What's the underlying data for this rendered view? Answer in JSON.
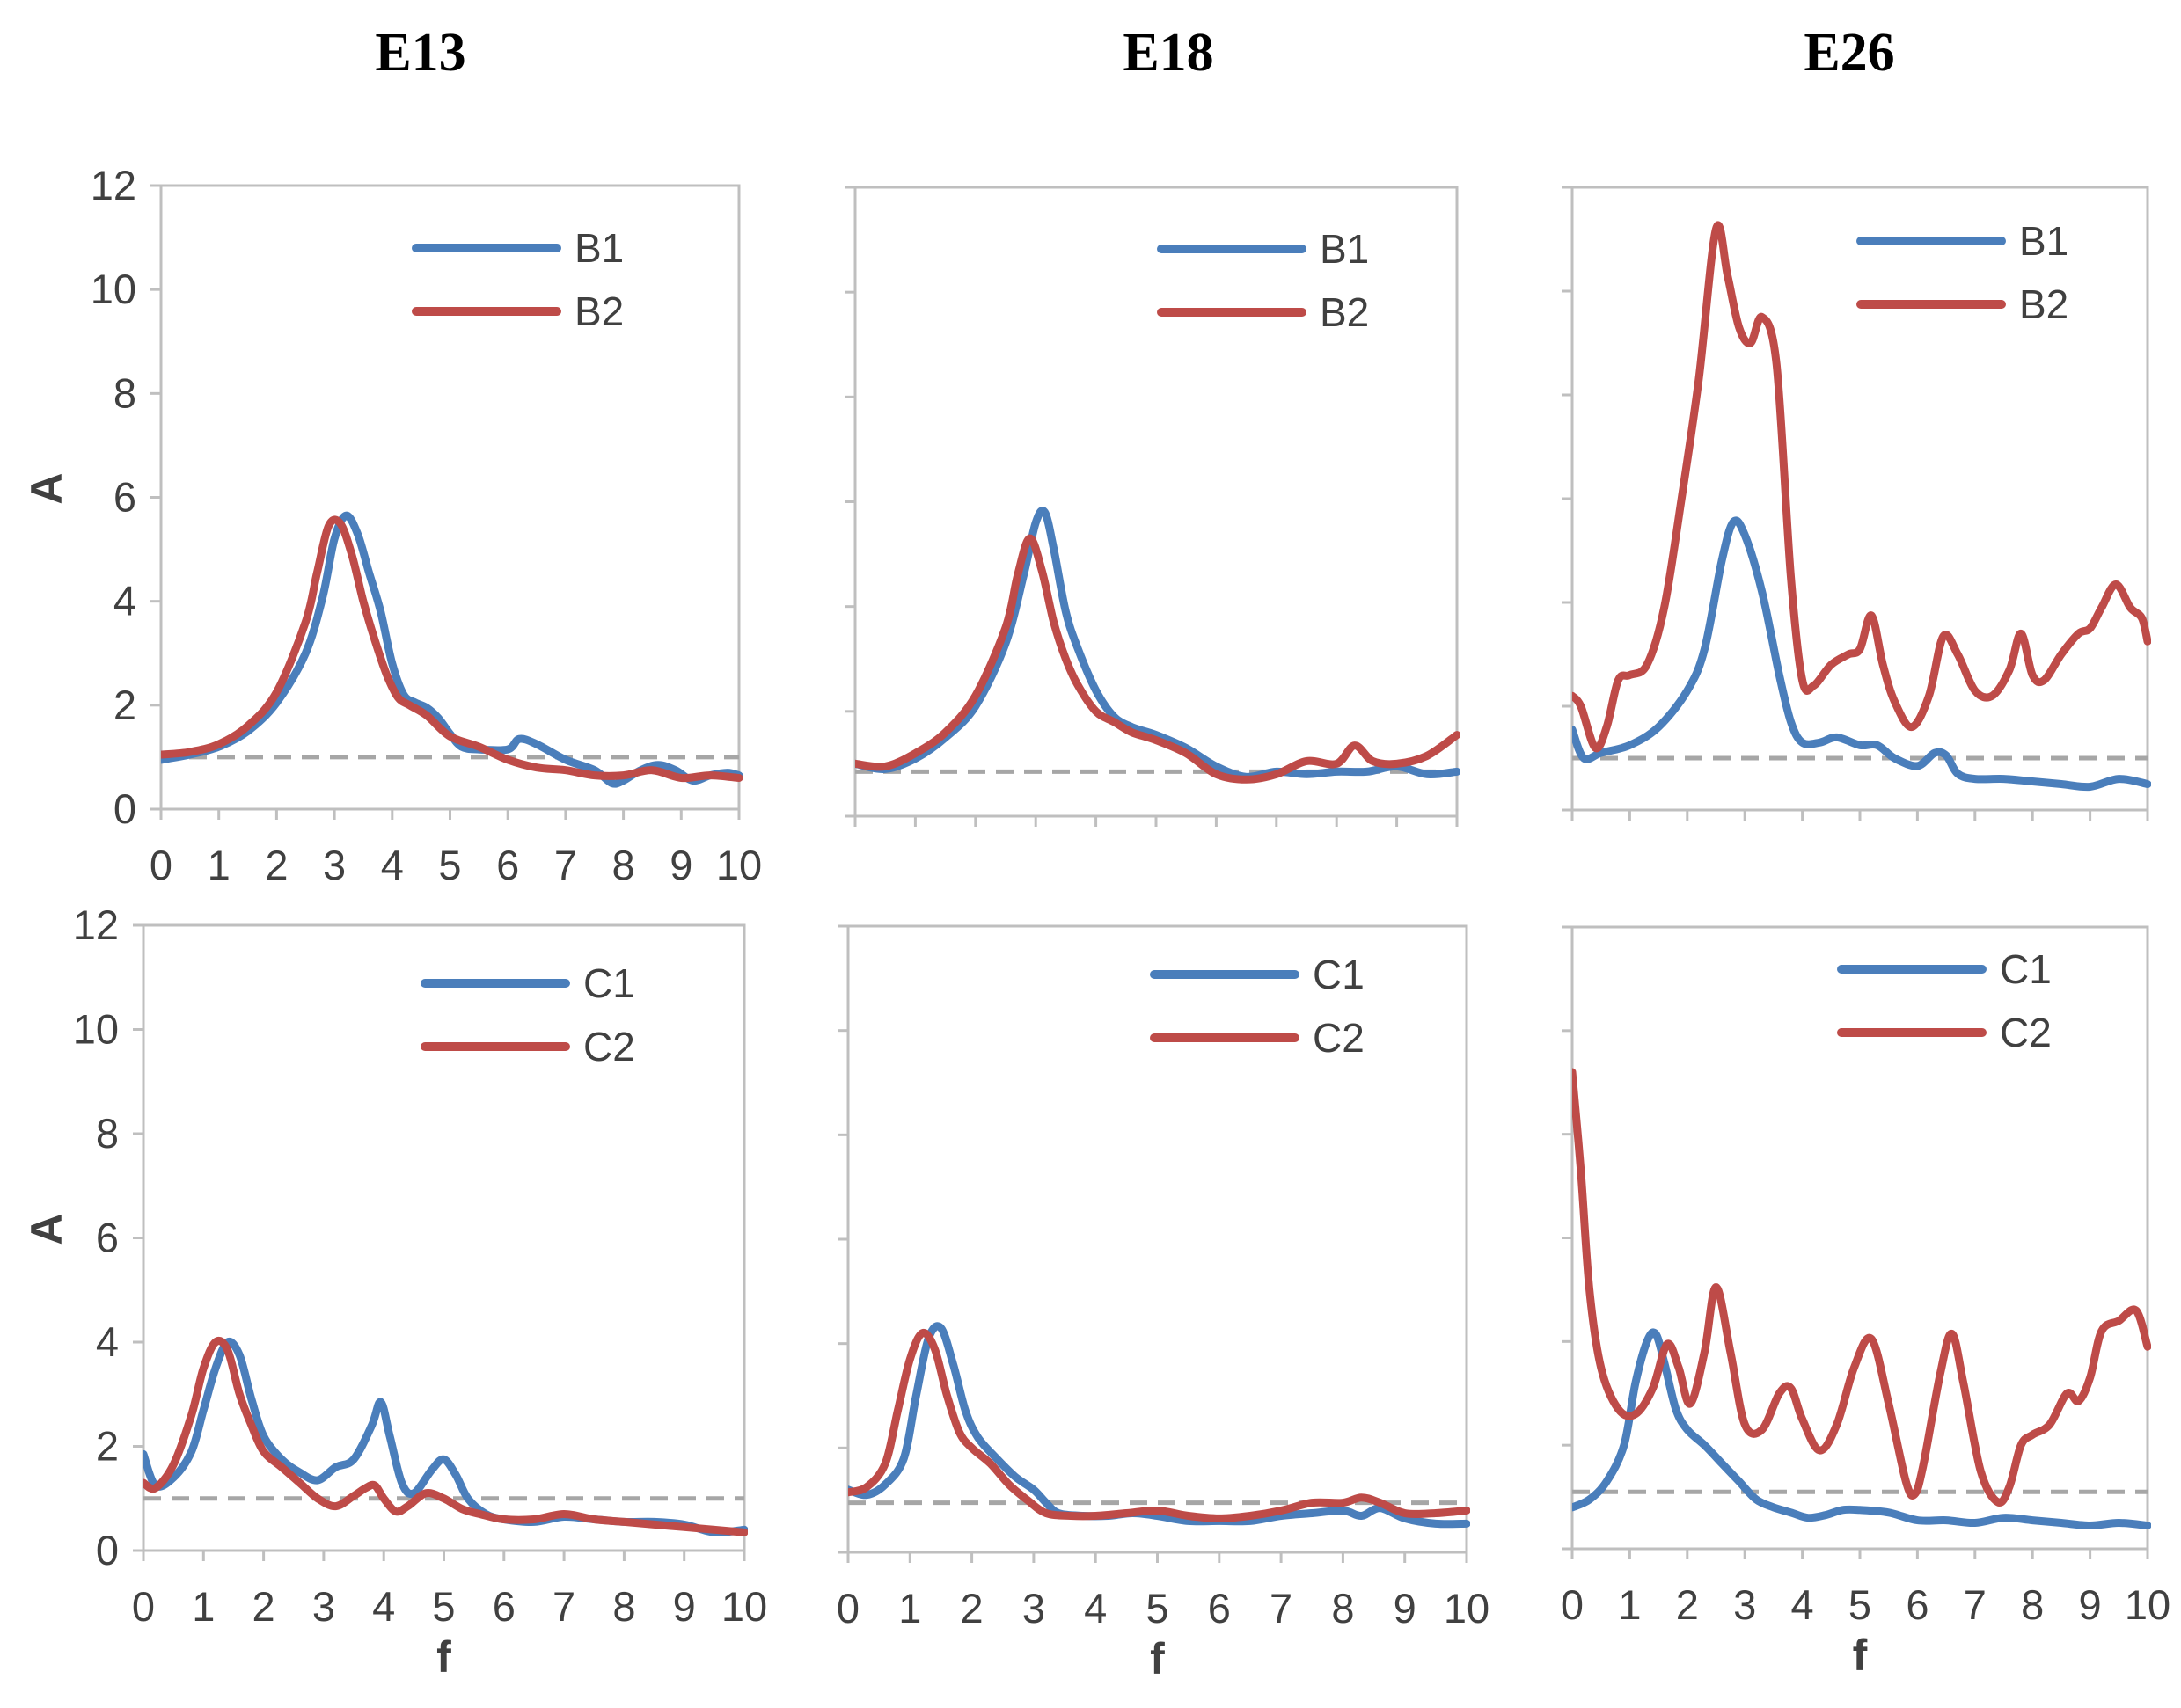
{
  "colors": {
    "series_blue": "#4a7ebb",
    "series_red": "#be4b48",
    "reference": "#a6a6a6",
    "frame": "#bfbfbf"
  },
  "chart_data": [
    {
      "type": "line",
      "column_title": "E13",
      "row": "top",
      "xlabel": "",
      "ylabel": "A",
      "xlim": [
        0,
        10
      ],
      "ylim": [
        0,
        12
      ],
      "reference_line": 1.0,
      "xticks": [
        "0",
        "1",
        "2",
        "3",
        "4",
        "5",
        "6",
        "7",
        "8",
        "9",
        "10"
      ],
      "yticks": [
        "0",
        "2",
        "4",
        "6",
        "8",
        "10",
        "12"
      ],
      "legend_position": "top-right",
      "series": [
        {
          "name": "B1",
          "color": "#4a7ebb",
          "x": [
            0,
            0.5,
            1,
            1.5,
            2,
            2.5,
            2.8,
            3,
            3.2,
            3.4,
            3.6,
            3.8,
            4,
            4.2,
            4.4,
            4.6,
            4.8,
            5,
            5.2,
            5.5,
            6,
            6.2,
            6.5,
            7,
            7.5,
            7.8,
            8,
            8.3,
            8.6,
            8.9,
            9.2,
            9.5,
            9.8,
            10
          ],
          "y": [
            0.95,
            1.05,
            1.2,
            1.5,
            2.05,
            3.0,
            4.1,
            5.2,
            5.65,
            5.3,
            4.55,
            3.8,
            2.8,
            2.2,
            2.05,
            1.95,
            1.75,
            1.45,
            1.2,
            1.15,
            1.15,
            1.35,
            1.25,
            0.95,
            0.75,
            0.5,
            0.55,
            0.75,
            0.85,
            0.75,
            0.55,
            0.65,
            0.7,
            0.65
          ]
        },
        {
          "name": "B2",
          "color": "#be4b48",
          "x": [
            0,
            0.5,
            1,
            1.5,
            2,
            2.5,
            2.7,
            2.9,
            3.1,
            3.3,
            3.5,
            3.7,
            3.9,
            4.1,
            4.3,
            4.6,
            5,
            5.5,
            6,
            6.5,
            7,
            7.5,
            8,
            8.5,
            9,
            9.5,
            10
          ],
          "y": [
            1.05,
            1.1,
            1.25,
            1.6,
            2.25,
            3.6,
            4.55,
            5.45,
            5.5,
            4.9,
            4.0,
            3.25,
            2.6,
            2.15,
            2.0,
            1.8,
            1.4,
            1.2,
            0.95,
            0.8,
            0.75,
            0.65,
            0.65,
            0.75,
            0.6,
            0.65,
            0.6
          ]
        }
      ]
    },
    {
      "type": "line",
      "column_title": "E18",
      "row": "top",
      "xlabel": "",
      "ylabel": "",
      "xlim": [
        0,
        10
      ],
      "ylim": [
        0,
        12
      ],
      "reference_line": 0.85,
      "legend_position": "top-right",
      "series": [
        {
          "name": "B1",
          "color": "#4a7ebb",
          "x": [
            0,
            0.5,
            1,
            1.5,
            2,
            2.5,
            2.8,
            3,
            3.15,
            3.3,
            3.5,
            3.7,
            4,
            4.3,
            4.6,
            5,
            5.5,
            6,
            6.5,
            7,
            7.5,
            8,
            8.5,
            9,
            9.5,
            10
          ],
          "y": [
            1.0,
            0.9,
            1.1,
            1.5,
            2.1,
            3.3,
            4.6,
            5.6,
            5.8,
            5.1,
            3.9,
            3.2,
            2.4,
            1.9,
            1.7,
            1.55,
            1.3,
            0.95,
            0.75,
            0.85,
            0.8,
            0.85,
            0.85,
            0.95,
            0.8,
            0.85
          ]
        },
        {
          "name": "B2",
          "color": "#be4b48",
          "x": [
            0,
            0.5,
            1,
            1.5,
            2,
            2.5,
            2.7,
            2.9,
            3.1,
            3.3,
            3.5,
            3.7,
            4,
            4.3,
            4.6,
            5,
            5.5,
            6,
            6.5,
            7,
            7.5,
            8,
            8.3,
            8.6,
            9,
            9.5,
            10
          ],
          "y": [
            1.0,
            0.95,
            1.2,
            1.6,
            2.3,
            3.6,
            4.6,
            5.3,
            4.7,
            3.7,
            3.0,
            2.5,
            2.0,
            1.8,
            1.6,
            1.45,
            1.2,
            0.8,
            0.7,
            0.8,
            1.05,
            1.0,
            1.35,
            1.05,
            1.0,
            1.15,
            1.55
          ]
        }
      ]
    },
    {
      "type": "line",
      "column_title": "E26",
      "row": "top",
      "xlabel": "",
      "ylabel": "",
      "xlim": [
        0,
        10
      ],
      "ylim": [
        0,
        12
      ],
      "reference_line": 1.0,
      "legend_position": "top-right",
      "series": [
        {
          "name": "B1",
          "color": "#4a7ebb",
          "x": [
            0,
            0.2,
            0.5,
            1,
            1.5,
            2,
            2.3,
            2.6,
            2.8,
            3,
            3.3,
            3.6,
            3.8,
            4,
            4.3,
            4.6,
            5,
            5.3,
            5.6,
            6,
            6.3,
            6.5,
            6.7,
            7,
            7.5,
            8,
            8.5,
            9,
            9.5,
            10
          ],
          "y": [
            1.55,
            1.0,
            1.1,
            1.25,
            1.6,
            2.3,
            3.1,
            4.8,
            5.55,
            5.3,
            4.2,
            2.6,
            1.7,
            1.3,
            1.3,
            1.4,
            1.25,
            1.25,
            1.0,
            0.85,
            1.1,
            1.05,
            0.7,
            0.6,
            0.6,
            0.55,
            0.5,
            0.45,
            0.6,
            0.5
          ]
        },
        {
          "name": "B2",
          "color": "#be4b48",
          "x": [
            0,
            0.15,
            0.4,
            0.6,
            0.8,
            1,
            1.3,
            1.6,
            1.9,
            2.2,
            2.5,
            2.7,
            2.9,
            3.1,
            3.3,
            3.55,
            3.8,
            4,
            4.2,
            4.5,
            4.8,
            5,
            5.2,
            5.4,
            5.6,
            5.9,
            6.2,
            6.45,
            6.7,
            7,
            7.3,
            7.6,
            7.8,
            8,
            8.2,
            8.5,
            8.8,
            9,
            9.2,
            9.45,
            9.7,
            9.9,
            10
          ],
          "y": [
            2.2,
            2.0,
            1.2,
            1.6,
            2.5,
            2.6,
            2.8,
            3.9,
            6.0,
            8.3,
            11.2,
            10.3,
            9.3,
            9.0,
            9.5,
            8.6,
            4.5,
            2.5,
            2.4,
            2.8,
            3.0,
            3.1,
            3.75,
            2.8,
            2.1,
            1.6,
            2.2,
            3.35,
            3.0,
            2.3,
            2.2,
            2.7,
            3.4,
            2.6,
            2.5,
            3.0,
            3.4,
            3.5,
            3.9,
            4.35,
            3.9,
            3.7,
            3.25
          ]
        }
      ]
    },
    {
      "type": "line",
      "column_title": "E13",
      "row": "bottom",
      "xlabel": "f",
      "ylabel": "A",
      "xlim": [
        0,
        10
      ],
      "ylim": [
        0,
        12
      ],
      "reference_line": 1.0,
      "xticks": [
        "0",
        "1",
        "2",
        "3",
        "4",
        "5",
        "6",
        "7",
        "8",
        "9",
        "10"
      ],
      "yticks": [
        "0",
        "2",
        "4",
        "6",
        "8",
        "10",
        "12"
      ],
      "legend_position": "top-right",
      "series": [
        {
          "name": "C1",
          "color": "#4a7ebb",
          "x": [
            0,
            0.2,
            0.5,
            0.8,
            1,
            1.2,
            1.4,
            1.6,
            1.8,
            2,
            2.3,
            2.6,
            2.9,
            3.2,
            3.5,
            3.8,
            3.95,
            4.1,
            4.3,
            4.5,
            4.8,
            5,
            5.2,
            5.4,
            5.7,
            6,
            6.5,
            7,
            7.5,
            8,
            8.5,
            9,
            9.5,
            10
          ],
          "y": [
            1.85,
            1.25,
            1.4,
            1.9,
            2.7,
            3.5,
            4.0,
            3.75,
            2.9,
            2.2,
            1.75,
            1.5,
            1.35,
            1.6,
            1.75,
            2.4,
            2.85,
            2.2,
            1.3,
            1.1,
            1.55,
            1.75,
            1.45,
            1.0,
            0.7,
            0.6,
            0.55,
            0.65,
            0.6,
            0.55,
            0.55,
            0.5,
            0.35,
            0.4
          ]
        },
        {
          "name": "C2",
          "color": "#be4b48",
          "x": [
            0,
            0.2,
            0.5,
            0.8,
            1,
            1.2,
            1.4,
            1.6,
            1.8,
            2,
            2.3,
            2.6,
            2.9,
            3.2,
            3.5,
            3.7,
            3.85,
            4,
            4.2,
            4.4,
            4.7,
            5,
            5.3,
            5.6,
            6,
            6.5,
            7,
            7.5,
            8,
            8.5,
            9,
            9.5,
            10
          ],
          "y": [
            1.3,
            1.2,
            1.65,
            2.6,
            3.5,
            4.0,
            3.85,
            3.0,
            2.4,
            1.9,
            1.6,
            1.3,
            1.0,
            0.85,
            1.05,
            1.2,
            1.25,
            1.0,
            0.75,
            0.85,
            1.1,
            1.0,
            0.8,
            0.7,
            0.6,
            0.6,
            0.7,
            0.6,
            0.55,
            0.5,
            0.45,
            0.4,
            0.35
          ]
        }
      ]
    },
    {
      "type": "line",
      "column_title": "E18",
      "row": "bottom",
      "xlabel": "f",
      "ylabel": "",
      "xlim": [
        0,
        10
      ],
      "ylim": [
        0,
        12
      ],
      "reference_line": 0.95,
      "xticks": [
        "0",
        "1",
        "2",
        "3",
        "4",
        "5",
        "6",
        "7",
        "8",
        "9",
        "10"
      ],
      "legend_position": "top-right",
      "series": [
        {
          "name": "C1",
          "color": "#4a7ebb",
          "x": [
            0,
            0.3,
            0.6,
            0.9,
            1.1,
            1.3,
            1.5,
            1.7,
            1.9,
            2.1,
            2.4,
            2.7,
            3,
            3.2,
            3.4,
            3.8,
            4.2,
            4.6,
            5,
            5.5,
            6,
            6.5,
            7,
            7.5,
            8,
            8.3,
            8.6,
            9,
            9.5,
            10
          ],
          "y": [
            1.2,
            1.1,
            1.3,
            1.8,
            3.0,
            4.1,
            4.3,
            3.6,
            2.7,
            2.2,
            1.8,
            1.45,
            1.2,
            0.95,
            0.75,
            0.7,
            0.7,
            0.75,
            0.7,
            0.6,
            0.6,
            0.6,
            0.7,
            0.75,
            0.8,
            0.7,
            0.85,
            0.65,
            0.55,
            0.55
          ]
        },
        {
          "name": "C2",
          "color": "#be4b48",
          "x": [
            0,
            0.3,
            0.6,
            0.8,
            1,
            1.2,
            1.4,
            1.6,
            1.8,
            2,
            2.3,
            2.6,
            2.9,
            3.2,
            3.6,
            4,
            4.5,
            5,
            5.5,
            6,
            6.5,
            7,
            7.5,
            8,
            8.3,
            8.6,
            9,
            9.5,
            10
          ],
          "y": [
            1.15,
            1.25,
            1.7,
            2.7,
            3.7,
            4.2,
            3.9,
            3.0,
            2.3,
            2.0,
            1.7,
            1.3,
            1.0,
            0.75,
            0.7,
            0.7,
            0.75,
            0.8,
            0.7,
            0.65,
            0.7,
            0.8,
            0.95,
            0.95,
            1.05,
            0.95,
            0.75,
            0.75,
            0.8
          ]
        }
      ]
    },
    {
      "type": "line",
      "column_title": "E26",
      "row": "bottom",
      "xlabel": "f",
      "ylabel": "",
      "xlim": [
        0,
        10
      ],
      "ylim": [
        0,
        12
      ],
      "reference_line": 1.1,
      "xticks": [
        "0",
        "1",
        "2",
        "3",
        "4",
        "5",
        "6",
        "7",
        "8",
        "9",
        "10"
      ],
      "legend_position": "top-right",
      "series": [
        {
          "name": "C1",
          "color": "#4a7ebb",
          "x": [
            0,
            0.3,
            0.6,
            0.9,
            1.1,
            1.3,
            1.45,
            1.6,
            1.8,
            2,
            2.3,
            2.6,
            2.9,
            3.2,
            3.5,
            3.8,
            4.1,
            4.4,
            4.7,
            5,
            5.5,
            6,
            6.5,
            7,
            7.5,
            8,
            8.5,
            9,
            9.5,
            10
          ],
          "y": [
            0.8,
            0.95,
            1.3,
            2.0,
            3.2,
            4.0,
            4.15,
            3.6,
            2.7,
            2.3,
            2.0,
            1.65,
            1.3,
            0.95,
            0.8,
            0.7,
            0.6,
            0.65,
            0.75,
            0.75,
            0.7,
            0.55,
            0.55,
            0.5,
            0.6,
            0.55,
            0.5,
            0.45,
            0.5,
            0.45
          ]
        },
        {
          "name": "C2",
          "color": "#be4b48",
          "x": [
            0,
            0.15,
            0.3,
            0.5,
            0.8,
            1.1,
            1.4,
            1.65,
            1.85,
            2.05,
            2.3,
            2.5,
            2.75,
            3,
            3.3,
            3.6,
            3.8,
            4,
            4.3,
            4.6,
            4.9,
            5.2,
            5.5,
            5.8,
            5.95,
            6.1,
            6.4,
            6.6,
            6.8,
            7.1,
            7.4,
            7.6,
            7.8,
            8,
            8.3,
            8.6,
            8.8,
            9,
            9.2,
            9.5,
            9.8,
            10
          ],
          "y": [
            9.2,
            7.3,
            5.0,
            3.5,
            2.7,
            2.6,
            3.1,
            3.95,
            3.5,
            2.8,
            3.8,
            5.05,
            3.8,
            2.4,
            2.3,
            3.0,
            3.1,
            2.5,
            1.9,
            2.4,
            3.5,
            4.05,
            2.8,
            1.3,
            1.05,
            1.6,
            3.4,
            4.15,
            3.2,
            1.5,
            0.9,
            1.2,
            2.0,
            2.2,
            2.4,
            3.0,
            2.85,
            3.3,
            4.2,
            4.4,
            4.6,
            3.9
          ]
        }
      ]
    }
  ]
}
